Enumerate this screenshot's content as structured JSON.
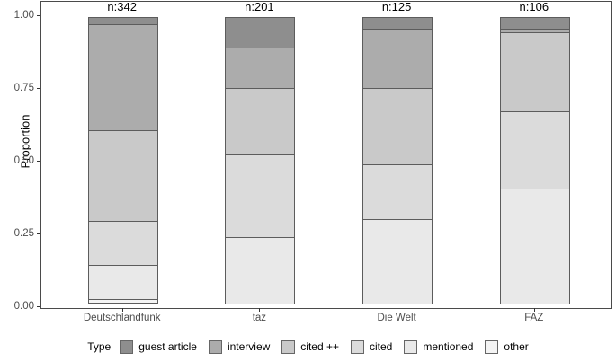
{
  "chart_data": {
    "type": "bar",
    "stacked": true,
    "orientation": "vertical",
    "ylabel": "Proportion",
    "xlabel": "",
    "ylim": [
      0,
      1
    ],
    "grid": false,
    "yticks": [
      {
        "label": "1.00",
        "value": 1.0
      },
      {
        "label": "0.75",
        "value": 0.75
      },
      {
        "label": "0.50",
        "value": 0.5
      },
      {
        "label": "0.25",
        "value": 0.25
      },
      {
        "label": "0.00",
        "value": 0.0
      }
    ],
    "categories": [
      "Deutschlandfunk",
      "taz",
      "Die Welt",
      "FAZ"
    ],
    "bar_annotations": [
      "n:342",
      "n:201",
      "n:125",
      "n:106"
    ],
    "legend_title": "Type",
    "legend_position": "bottom",
    "series": [
      {
        "name": "guest article",
        "color": "#8E8E8E",
        "values": [
          0.028,
          0.108,
          0.043,
          0.042
        ]
      },
      {
        "name": "interview",
        "color": "#ACACAC",
        "values": [
          0.368,
          0.142,
          0.207,
          0.017
        ]
      },
      {
        "name": "cited ++",
        "color": "#C9C9C9",
        "values": [
          0.313,
          0.231,
          0.265,
          0.273
        ]
      },
      {
        "name": "cited",
        "color": "#DBDBDB",
        "values": [
          0.154,
          0.288,
          0.192,
          0.27
        ]
      },
      {
        "name": "mentioned",
        "color": "#E9E9E9",
        "values": [
          0.123,
          0.231,
          0.293,
          0.398
        ]
      },
      {
        "name": "other",
        "color": "#F4F4F4",
        "values": [
          0.014,
          0.0,
          0.0,
          0.0
        ]
      }
    ]
  }
}
